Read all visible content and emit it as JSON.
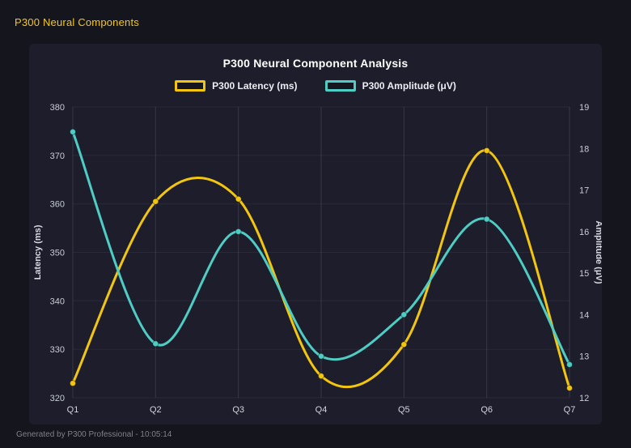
{
  "header": {
    "title": "P300 Neural Components"
  },
  "footer": {
    "text": "Generated by P300 Professional - 10:05:14"
  },
  "colors": {
    "background": "#15151e",
    "panel": "#1d1d2b",
    "latency_yellow": "#f2c50f",
    "amplitude_teal": "#4ecdc4",
    "grid_vertical": "rgba(255,255,255,0.12)",
    "grid_horizontal": "rgba(255,255,255,0.06)"
  },
  "chart_data": {
    "type": "line",
    "title": "P300 Neural Component Analysis",
    "categories": [
      "Q1",
      "Q2",
      "Q3",
      "Q4",
      "Q5",
      "Q6",
      "Q7"
    ],
    "series": [
      {
        "name": "P300 Latency (ms)",
        "axis": "left",
        "color": "#f2c50f",
        "values": [
          323,
          360.5,
          361,
          324.5,
          331,
          371,
          322
        ]
      },
      {
        "name": "P300 Amplitude (μV)",
        "axis": "right",
        "color": "#4ecdc4",
        "values": [
          18.4,
          13.3,
          16.0,
          13.0,
          14.0,
          16.3,
          12.8
        ]
      }
    ],
    "left_axis": {
      "label": "Latency (ms)",
      "min": 320,
      "max": 380,
      "step": 10
    },
    "right_axis": {
      "label": "Amplitude (μV)",
      "min": 12,
      "max": 19,
      "step": 1
    },
    "legend_position": "top",
    "grid": true,
    "smooth": true,
    "point_markers": true
  }
}
